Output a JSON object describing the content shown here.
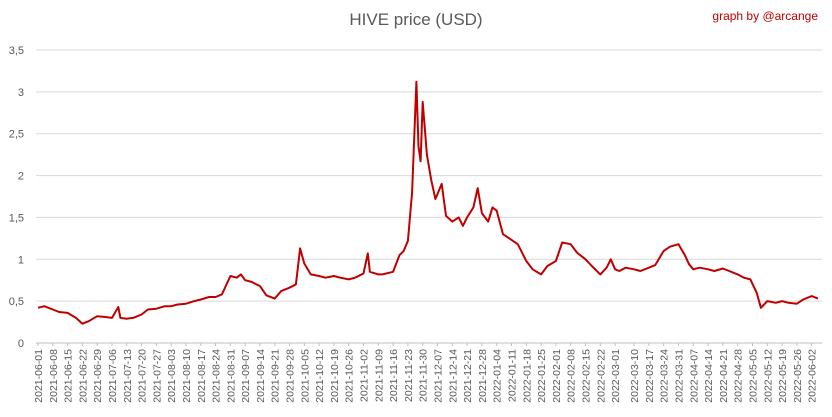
{
  "chart_data": {
    "type": "line",
    "title": "HIVE price (USD)",
    "credit": "graph by @arcange",
    "xlabel": "",
    "ylabel": "",
    "ylim": [
      0,
      3.5
    ],
    "yticks": [
      "0",
      "0,5",
      "1",
      "1,5",
      "2",
      "2,5",
      "3",
      "3,5"
    ],
    "grid": "horizontal",
    "legend": "none",
    "line_color": "#c00000",
    "x_tick_labels": [
      "2021-06-01",
      "2021-06-08",
      "2021-06-15",
      "2021-06-22",
      "2021-06-29",
      "2021-07-06",
      "2021-07-13",
      "2021-07-20",
      "2021-07-27",
      "2021-08-03",
      "2021-08-10",
      "2021-08-17",
      "2021-08-24",
      "2021-08-31",
      "2021-09-07",
      "2021-09-14",
      "2021-09-21",
      "2021-09-28",
      "2021-10-05",
      "2021-10-12",
      "2021-10-19",
      "2021-10-26",
      "2021-11-02",
      "2021-11-09",
      "2021-11-16",
      "2021-11-23",
      "2021-11-30",
      "2021-12-07",
      "2021-12-14",
      "2021-12-21",
      "2021-12-28",
      "2022-01-04",
      "2022-01-11",
      "2022-01-18",
      "2022-01-25",
      "2022-02-01",
      "2022-02-08",
      "2022-02-15",
      "2022-02-22",
      "2022-03-01",
      "2022-03-10",
      "2022-03-17",
      "2022-03-24",
      "2022-03-31",
      "2022-04-07",
      "2022-04-14",
      "2022-04-21",
      "2022-04-28",
      "2022-05-05",
      "2022-05-12",
      "2022-05-19",
      "2022-05-26",
      "2022-06-02"
    ],
    "series": [
      {
        "points": [
          [
            "2021-06-01",
            0.42
          ],
          [
            "2021-06-04",
            0.44
          ],
          [
            "2021-06-08",
            0.4
          ],
          [
            "2021-06-11",
            0.37
          ],
          [
            "2021-06-15",
            0.36
          ],
          [
            "2021-06-19",
            0.3
          ],
          [
            "2021-06-22",
            0.23
          ],
          [
            "2021-06-25",
            0.26
          ],
          [
            "2021-06-29",
            0.32
          ],
          [
            "2021-07-03",
            0.31
          ],
          [
            "2021-07-06",
            0.3
          ],
          [
            "2021-07-09",
            0.43
          ],
          [
            "2021-07-10",
            0.3
          ],
          [
            "2021-07-13",
            0.29
          ],
          [
            "2021-07-16",
            0.3
          ],
          [
            "2021-07-20",
            0.34
          ],
          [
            "2021-07-23",
            0.4
          ],
          [
            "2021-07-27",
            0.41
          ],
          [
            "2021-07-31",
            0.44
          ],
          [
            "2021-08-03",
            0.44
          ],
          [
            "2021-08-06",
            0.46
          ],
          [
            "2021-08-10",
            0.47
          ],
          [
            "2021-08-14",
            0.5
          ],
          [
            "2021-08-17",
            0.52
          ],
          [
            "2021-08-21",
            0.55
          ],
          [
            "2021-08-24",
            0.55
          ],
          [
            "2021-08-27",
            0.58
          ],
          [
            "2021-08-31",
            0.8
          ],
          [
            "2021-09-03",
            0.78
          ],
          [
            "2021-09-05",
            0.82
          ],
          [
            "2021-09-07",
            0.75
          ],
          [
            "2021-09-10",
            0.73
          ],
          [
            "2021-09-14",
            0.68
          ],
          [
            "2021-09-17",
            0.57
          ],
          [
            "2021-09-21",
            0.53
          ],
          [
            "2021-09-24",
            0.62
          ],
          [
            "2021-09-28",
            0.66
          ],
          [
            "2021-10-01",
            0.7
          ],
          [
            "2021-10-03",
            1.13
          ],
          [
            "2021-10-05",
            0.95
          ],
          [
            "2021-10-08",
            0.82
          ],
          [
            "2021-10-12",
            0.8
          ],
          [
            "2021-10-15",
            0.78
          ],
          [
            "2021-10-19",
            0.8
          ],
          [
            "2021-10-22",
            0.78
          ],
          [
            "2021-10-26",
            0.76
          ],
          [
            "2021-10-29",
            0.78
          ],
          [
            "2021-11-02",
            0.83
          ],
          [
            "2021-11-04",
            1.07
          ],
          [
            "2021-11-05",
            0.85
          ],
          [
            "2021-11-09",
            0.82
          ],
          [
            "2021-11-11",
            0.82
          ],
          [
            "2021-11-16",
            0.85
          ],
          [
            "2021-11-19",
            1.05
          ],
          [
            "2021-11-21",
            1.1
          ],
          [
            "2021-11-23",
            1.22
          ],
          [
            "2021-11-25",
            1.8
          ],
          [
            "2021-11-27",
            3.12
          ],
          [
            "2021-11-28",
            2.35
          ],
          [
            "2021-11-29",
            2.17
          ],
          [
            "2021-11-30",
            2.88
          ],
          [
            "2021-12-02",
            2.25
          ],
          [
            "2021-12-04",
            1.95
          ],
          [
            "2021-12-06",
            1.72
          ],
          [
            "2021-12-07",
            1.78
          ],
          [
            "2021-12-09",
            1.9
          ],
          [
            "2021-12-11",
            1.52
          ],
          [
            "2021-12-14",
            1.45
          ],
          [
            "2021-12-17",
            1.5
          ],
          [
            "2021-12-19",
            1.4
          ],
          [
            "2021-12-21",
            1.5
          ],
          [
            "2021-12-24",
            1.62
          ],
          [
            "2021-12-26",
            1.85
          ],
          [
            "2021-12-28",
            1.55
          ],
          [
            "2021-12-31",
            1.45
          ],
          [
            "2022-01-02",
            1.62
          ],
          [
            "2022-01-04",
            1.58
          ],
          [
            "2022-01-07",
            1.3
          ],
          [
            "2022-01-10",
            1.25
          ],
          [
            "2022-01-14",
            1.18
          ],
          [
            "2022-01-18",
            0.98
          ],
          [
            "2022-01-21",
            0.88
          ],
          [
            "2022-01-25",
            0.82
          ],
          [
            "2022-01-28",
            0.92
          ],
          [
            "2022-02-01",
            0.98
          ],
          [
            "2022-02-04",
            1.2
          ],
          [
            "2022-02-08",
            1.18
          ],
          [
            "2022-02-11",
            1.08
          ],
          [
            "2022-02-15",
            1.0
          ],
          [
            "2022-02-18",
            0.92
          ],
          [
            "2022-02-22",
            0.82
          ],
          [
            "2022-02-25",
            0.9
          ],
          [
            "2022-02-27",
            1.0
          ],
          [
            "2022-03-01",
            0.88
          ],
          [
            "2022-03-03",
            0.86
          ],
          [
            "2022-03-06",
            0.9
          ],
          [
            "2022-03-10",
            0.88
          ],
          [
            "2022-03-13",
            0.86
          ],
          [
            "2022-03-17",
            0.9
          ],
          [
            "2022-03-20",
            0.93
          ],
          [
            "2022-03-24",
            1.1
          ],
          [
            "2022-03-27",
            1.15
          ],
          [
            "2022-03-31",
            1.18
          ],
          [
            "2022-04-03",
            1.05
          ],
          [
            "2022-04-05",
            0.94
          ],
          [
            "2022-04-07",
            0.88
          ],
          [
            "2022-04-10",
            0.9
          ],
          [
            "2022-04-14",
            0.88
          ],
          [
            "2022-04-17",
            0.86
          ],
          [
            "2022-04-21",
            0.89
          ],
          [
            "2022-04-24",
            0.86
          ],
          [
            "2022-04-28",
            0.82
          ],
          [
            "2022-05-01",
            0.78
          ],
          [
            "2022-05-04",
            0.76
          ],
          [
            "2022-05-07",
            0.6
          ],
          [
            "2022-05-09",
            0.42
          ],
          [
            "2022-05-12",
            0.5
          ],
          [
            "2022-05-16",
            0.48
          ],
          [
            "2022-05-19",
            0.5
          ],
          [
            "2022-05-22",
            0.48
          ],
          [
            "2022-05-26",
            0.47
          ],
          [
            "2022-05-29",
            0.52
          ],
          [
            "2022-06-02",
            0.56
          ],
          [
            "2022-06-05",
            0.53
          ]
        ]
      }
    ]
  }
}
